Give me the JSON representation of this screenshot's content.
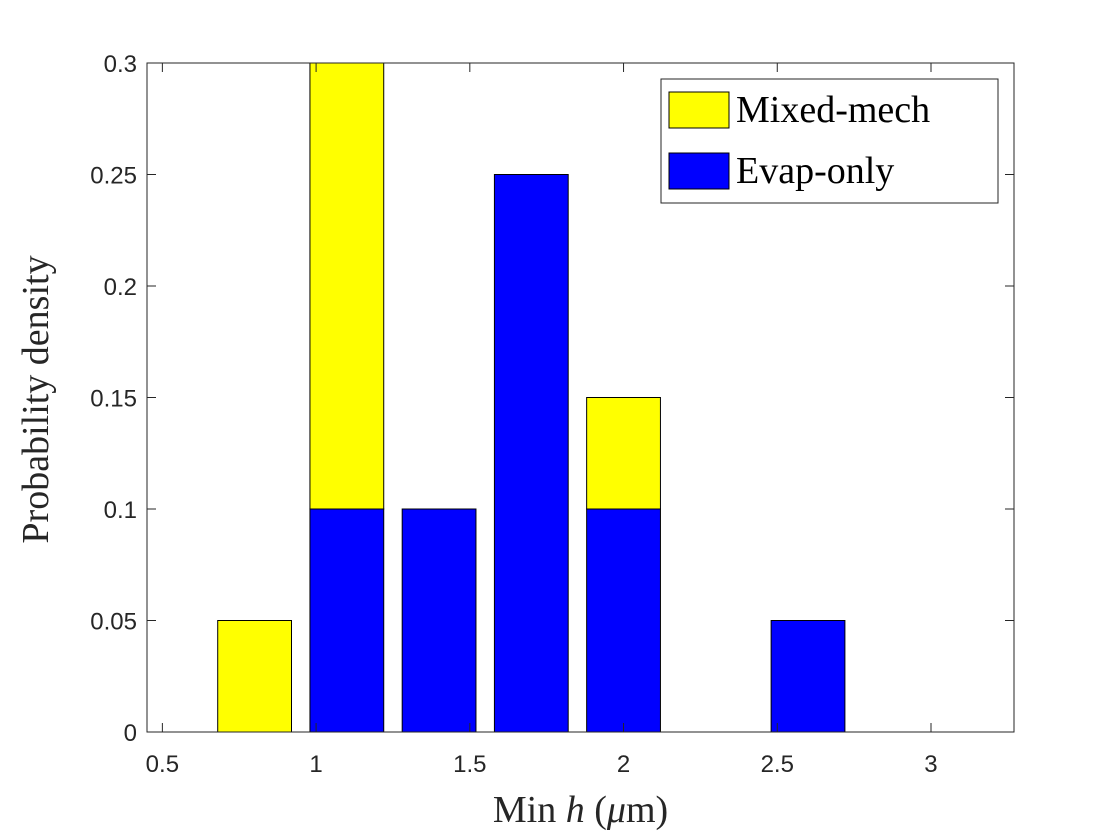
{
  "chart_data": {
    "type": "bar",
    "stacked": true,
    "x": [
      0.8,
      1.1,
      1.4,
      1.7,
      2.0,
      2.3,
      2.6
    ],
    "series": [
      {
        "name": "Evap-only",
        "color": "#0000ff",
        "values": [
          0,
          0.1,
          0.1,
          0.25,
          0.1,
          0,
          0.05
        ]
      },
      {
        "name": "Mixed-mech",
        "color": "#ffff00",
        "values": [
          0.05,
          0.2,
          0,
          0,
          0.05,
          0,
          0
        ]
      }
    ],
    "bar_width": 0.24,
    "xlim": [
      0.45,
      3.27
    ],
    "ylim": [
      0,
      0.3
    ],
    "xticks": [
      0.5,
      1,
      1.5,
      2,
      2.5,
      3
    ],
    "xtick_labels": [
      "0.5",
      "1",
      "1.5",
      "2",
      "2.5",
      "3"
    ],
    "yticks": [
      0,
      0.05,
      0.1,
      0.15,
      0.2,
      0.25,
      0.3
    ],
    "ytick_labels": [
      "0",
      "0.05",
      "0.1",
      "0.15",
      "0.2",
      "0.25",
      "0.3"
    ],
    "xlabel_prefix": "Min ",
    "xlabel_var": "h",
    "xlabel_suffix": " (",
    "xlabel_unit_mu": "μ",
    "xlabel_unit_rest": "m)",
    "ylabel": "Probability density",
    "legend": {
      "location": "top-right",
      "entries": [
        {
          "label": "Mixed-mech",
          "color": "#ffff00"
        },
        {
          "label": "Evap-only",
          "color": "#0000ff"
        }
      ]
    },
    "grid": false
  }
}
